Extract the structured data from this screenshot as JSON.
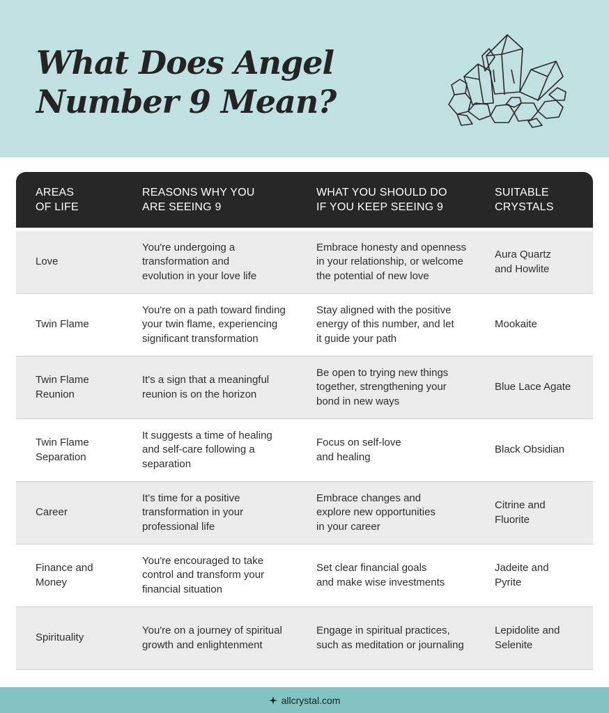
{
  "header": {
    "title": "What Does Angel\nNumber 9 Mean?",
    "crystal_icon": "crystal-cluster-icon"
  },
  "table": {
    "columns": [
      "AREAS\nOF LIFE",
      "REASONS WHY YOU\nARE SEEING 9",
      "WHAT YOU SHOULD DO\nIF YOU KEEP SEEING 9",
      "SUITABLE\nCRYSTALS"
    ],
    "rows": [
      {
        "area": "Love",
        "reason": "You're undergoing a\ntransformation and\nevolution in your love life",
        "action": "Embrace honesty and openness\nin your relationship, or welcome\nthe potential of new love",
        "crystals": "Aura Quartz\nand Howlite"
      },
      {
        "area": "Twin Flame",
        "reason": "You're on a path toward finding\nyour twin flame, experiencing\nsignificant transformation",
        "action": "Stay aligned with the positive\nenergy of this number, and let\nit guide your path",
        "crystals": "Mookaite"
      },
      {
        "area": "Twin Flame\nReunion",
        "reason": "It's a sign that a meaningful\nreunion is on the horizon",
        "action": "Be open to trying new things\ntogether, strengthening your\nbond in new ways",
        "crystals": "Blue Lace Agate"
      },
      {
        "area": "Twin Flame\nSeparation",
        "reason": "It suggests a time of healing\nand self-care following a\nseparation",
        "action": "Focus on self-love\nand healing",
        "crystals": "Black Obsidian"
      },
      {
        "area": "Career",
        "reason": "It's time for a positive\ntransformation in your\nprofessional life",
        "action": "Embrace changes and\nexplore new opportunities\nin your career",
        "crystals": "Citrine and\nFluorite"
      },
      {
        "area": "Finance and\nMoney",
        "reason": "You're encouraged to take\ncontrol and transform your\nfinancial situation",
        "action": "Set clear financial goals\nand make wise investments",
        "crystals": "Jadeite and\nPyrite"
      },
      {
        "area": "Spirituality",
        "reason": "You're on a journey of spiritual\ngrowth and enlightenment",
        "action": "Engage in spiritual practices,\nsuch as meditation or journaling",
        "crystals": "Lepidolite and\nSelenite"
      }
    ]
  },
  "footer": {
    "brand": "allcrystal.com",
    "brand_icon": "sparkle-icon"
  },
  "colors": {
    "header_bg": "#c1e0e2",
    "table_header_bg": "#272727",
    "row_shade": "#ebebeb",
    "footer_bg": "#82c4c3"
  }
}
